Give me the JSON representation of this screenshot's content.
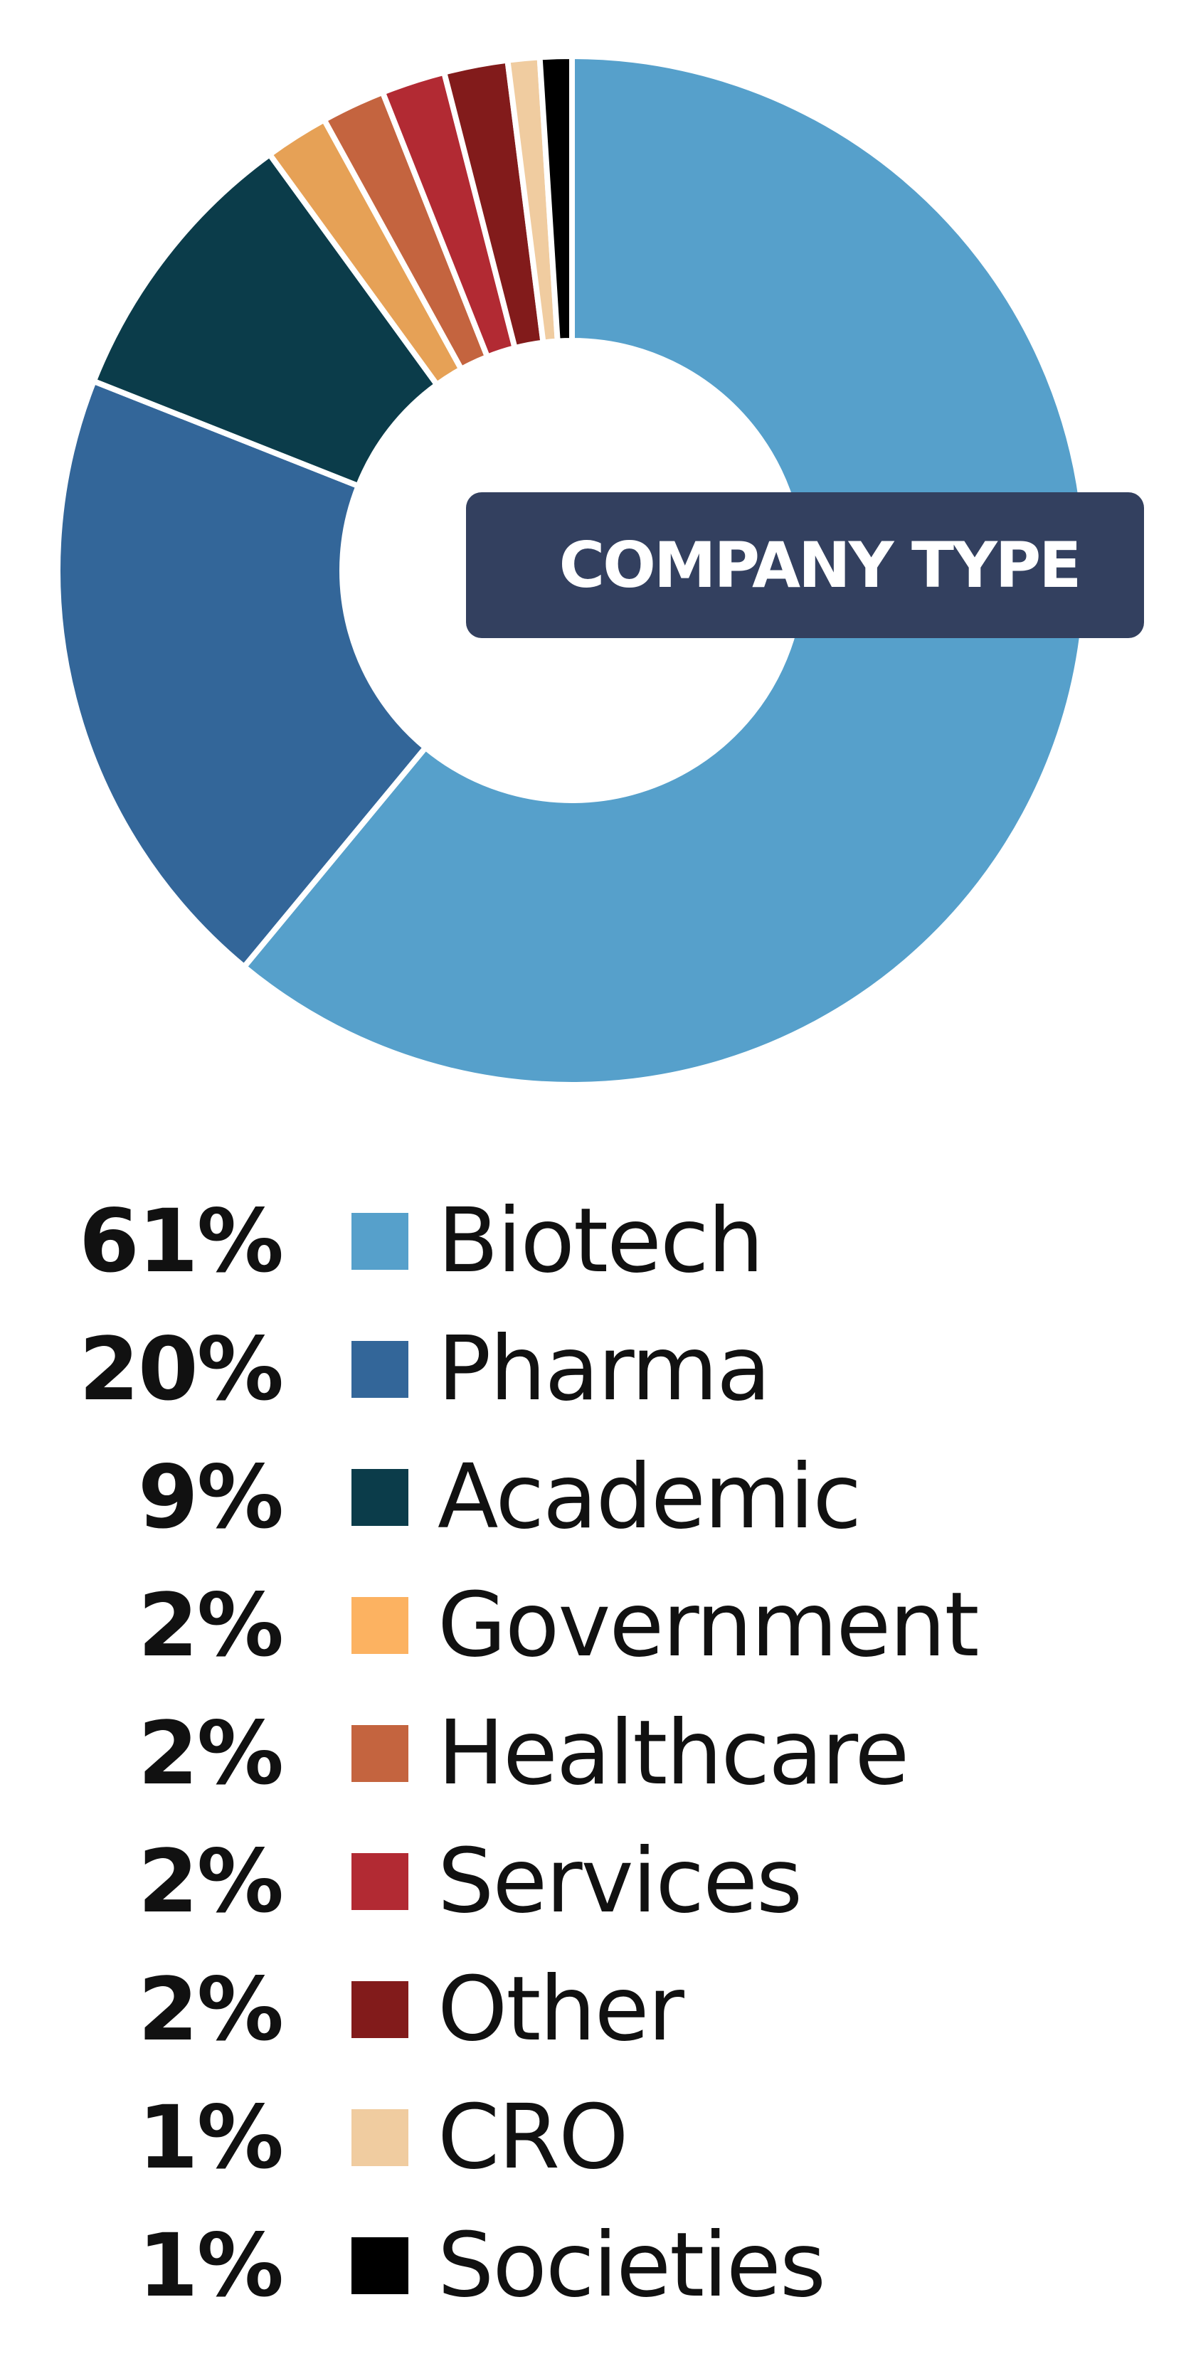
{
  "chart_data": {
    "type": "pie",
    "style": "donut",
    "title": "COMPANY TYPE",
    "legend_placement": "bottom",
    "categories": [
      "Biotech",
      "Pharma",
      "Academic",
      "Government",
      "Healthcare",
      "Services",
      "Other",
      "CRO",
      "Societies"
    ],
    "values": [
      61,
      20,
      9,
      2,
      2,
      2,
      2,
      1,
      1
    ],
    "labels": [
      "61%",
      "20%",
      "9%",
      "2%",
      "2%",
      "2%",
      "2%",
      "1%",
      "1%"
    ],
    "colors": [
      "#56a0cb",
      "#336699",
      "#0b3c4a",
      "#e6a156",
      "#c4643f",
      "#b22a33",
      "#821b1b",
      "#f0ccA0",
      "#000000"
    ],
    "legend_colors": [
      "#56a0cb",
      "#336699",
      "#0b3c4a",
      "#fcb261",
      "#c4643f",
      "#b22a33",
      "#821b1b",
      "#f0cca0",
      "#000000"
    ]
  }
}
